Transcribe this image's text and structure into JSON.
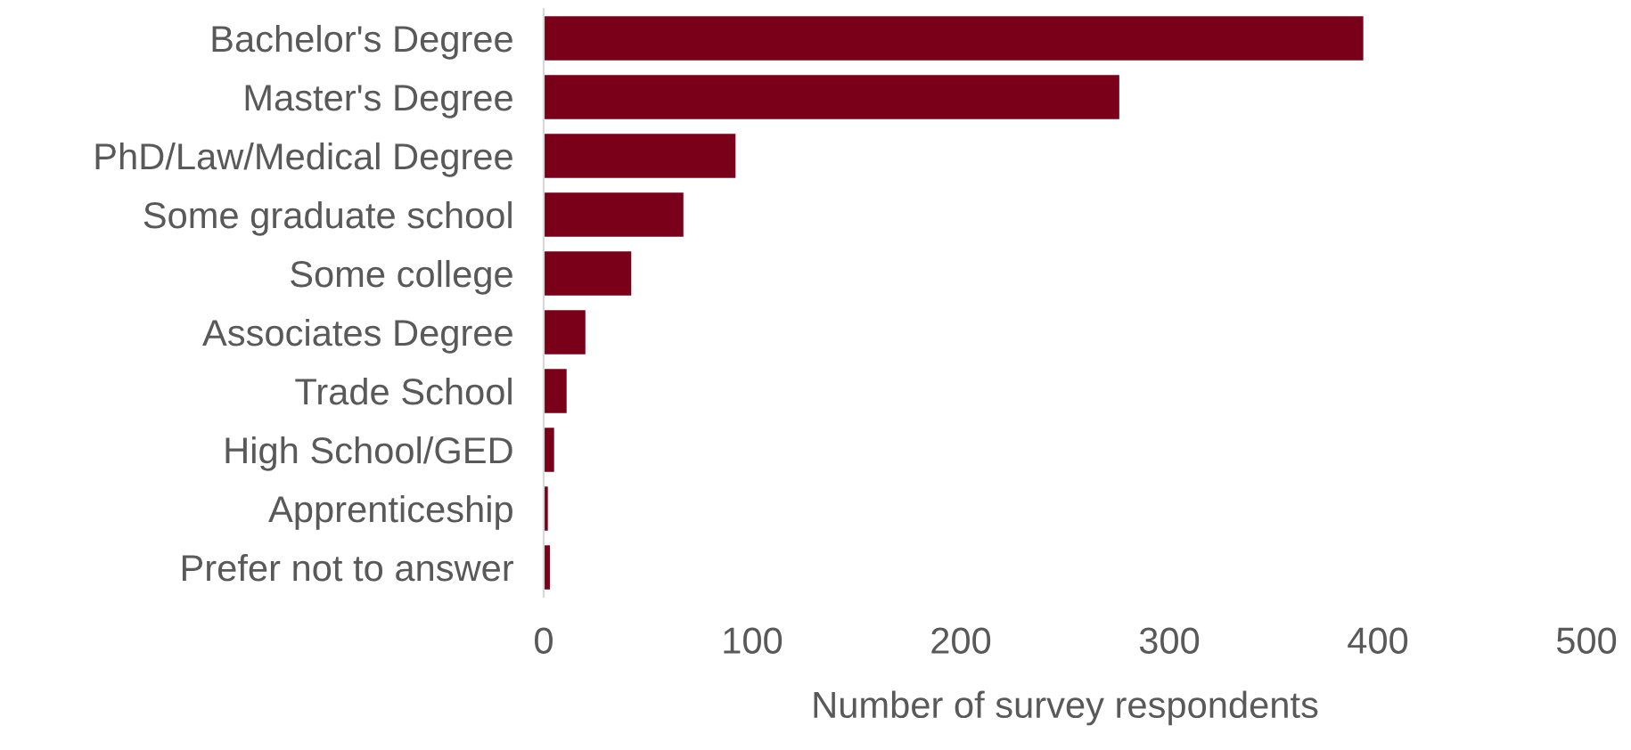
{
  "chart_data": {
    "type": "bar",
    "orientation": "horizontal",
    "xlabel": "Number of survey respondents",
    "categories": [
      "Bachelor's Degree",
      "Master's Degree",
      "PhD/Law/Medical Degree",
      "Some graduate school",
      "Some college",
      "Associates Degree",
      "Trade School",
      "High School/GED",
      "Apprenticeship",
      "Prefer not to answer"
    ],
    "values": [
      393,
      276,
      92,
      67,
      42,
      20,
      11,
      5,
      2,
      3
    ],
    "color": "#7a0019",
    "xlim": [
      0,
      500
    ],
    "xticks": [
      0,
      100,
      200,
      300,
      400,
      500
    ],
    "grid": false,
    "legend": false
  }
}
